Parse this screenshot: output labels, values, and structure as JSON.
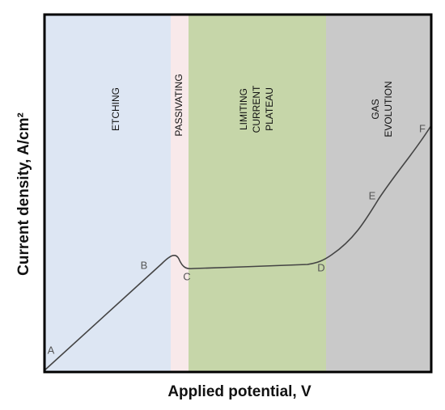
{
  "regions": [
    {
      "lines": [
        "ETCHING"
      ]
    },
    {
      "lines": [
        "PASSIVATING"
      ]
    },
    {
      "lines": [
        "LIMITING",
        "CURRENT",
        "PLATEAU"
      ]
    },
    {
      "lines": [
        "GAS",
        "EVOLUTION"
      ]
    }
  ],
  "points": [
    "A",
    "B",
    "C",
    "D",
    "E",
    "F"
  ],
  "axes": {
    "x_label": "Applied potential, V",
    "y_label": "Current density, A/cm²"
  }
}
